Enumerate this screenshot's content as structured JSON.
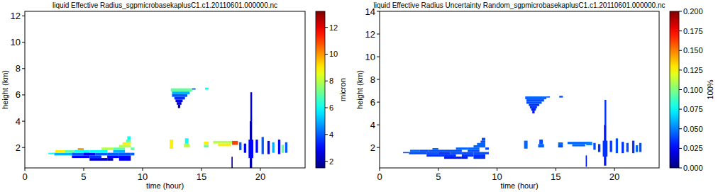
{
  "chart_data": [
    {
      "type": "heatmap",
      "title": "liquid Effective Radius_sgpmicrobasekaplusC1.c1.20110601.000000.nc",
      "x_label": "time (hour)",
      "y_label": "height (km)",
      "xlim": [
        0,
        23.8
      ],
      "xticks": [
        0,
        5,
        10,
        15,
        20
      ],
      "ylim": [
        0.45,
        12.35
      ],
      "yticks": [
        2,
        4,
        6,
        8,
        10,
        12
      ],
      "colorbar_label": "micron",
      "colorbar_range": [
        1.5,
        13.2
      ],
      "colorbar_ticks": [
        2,
        4,
        6,
        8,
        10,
        12
      ],
      "cells": [
        [
          2.0,
          2.5,
          1.5,
          1.6,
          6
        ],
        [
          2.5,
          4,
          1.4,
          1.6,
          5
        ],
        [
          2.6,
          3.4,
          1.6,
          1.8,
          9
        ],
        [
          3.4,
          4.2,
          1.6,
          1.8,
          7
        ],
        [
          4,
          5.5,
          1.2,
          1.4,
          3
        ],
        [
          4,
          5,
          1.4,
          1.6,
          4
        ],
        [
          4.2,
          5.5,
          1.6,
          1.8,
          6
        ],
        [
          4.5,
          5,
          1.8,
          1.95,
          10
        ],
        [
          5,
          6,
          1.4,
          1.6,
          3
        ],
        [
          5.5,
          7,
          1.0,
          1.2,
          2.5
        ],
        [
          5.5,
          6.5,
          1.2,
          1.4,
          3.5
        ],
        [
          6,
          7,
          1.4,
          1.6,
          4
        ],
        [
          5.5,
          7,
          1.6,
          1.8,
          6
        ],
        [
          6.5,
          7.5,
          1.8,
          2.0,
          8
        ],
        [
          7,
          8,
          1.2,
          1.4,
          3
        ],
        [
          7,
          8,
          1.4,
          1.6,
          4
        ],
        [
          7.5,
          8.5,
          1.6,
          1.8,
          5
        ],
        [
          7.5,
          8.5,
          1.8,
          2.0,
          7
        ],
        [
          8,
          9,
          2.0,
          2.2,
          8
        ],
        [
          8.3,
          9,
          2.2,
          2.4,
          9
        ],
        [
          8.6,
          9,
          2.4,
          2.6,
          7
        ],
        [
          8.7,
          9,
          2.6,
          2.85,
          6
        ],
        [
          8,
          9,
          1.0,
          1.4,
          3
        ],
        [
          8,
          9,
          1.4,
          1.6,
          4
        ],
        [
          9,
          9.3,
          1.4,
          1.6,
          4
        ],
        [
          9,
          9.3,
          1.8,
          2.0,
          7
        ],
        [
          7,
          7.5,
          1.0,
          1.2,
          2
        ],
        [
          12.4,
          14.2,
          6.25,
          6.5,
          7
        ],
        [
          12.5,
          14,
          6.05,
          6.25,
          5
        ],
        [
          12.5,
          13.8,
          5.85,
          6.05,
          4
        ],
        [
          12.7,
          13.6,
          5.65,
          5.85,
          3.5
        ],
        [
          12.8,
          13.4,
          5.45,
          5.65,
          3
        ],
        [
          12.9,
          13.3,
          5.25,
          5.45,
          2.5
        ],
        [
          13,
          13.2,
          5.0,
          5.25,
          2
        ],
        [
          15.3,
          15.6,
          6.4,
          6.55,
          6
        ],
        [
          14.2,
          14.5,
          6.4,
          6.5,
          4
        ],
        [
          12.3,
          12.6,
          1.9,
          2.6,
          9
        ],
        [
          13.5,
          14,
          2.0,
          2.3,
          8
        ],
        [
          13.6,
          13.9,
          2.3,
          2.7,
          6
        ],
        [
          15.2,
          15.6,
          2.2,
          2.45,
          9
        ],
        [
          15.2,
          15.6,
          2.0,
          2.2,
          7
        ],
        [
          16,
          17.9,
          2.3,
          2.5,
          8
        ],
        [
          16.4,
          17.5,
          2.1,
          2.3,
          9
        ],
        [
          17.6,
          18.1,
          2.2,
          2.5,
          11
        ],
        [
          18.2,
          18.4,
          1.8,
          2.4,
          4
        ],
        [
          18.6,
          18.8,
          1.6,
          2.3,
          3
        ],
        [
          17.55,
          17.65,
          0.3,
          1.3,
          2
        ],
        [
          19.1,
          19.3,
          0.4,
          4.0,
          2
        ],
        [
          19.15,
          19.3,
          4.0,
          6.2,
          2.5
        ],
        [
          19.0,
          19.4,
          1.2,
          2.6,
          3
        ],
        [
          19.6,
          19.8,
          1.6,
          2.6,
          3
        ],
        [
          20.1,
          20.3,
          1.5,
          2.8,
          4
        ],
        [
          20.6,
          20.8,
          1.5,
          2.5,
          3
        ],
        [
          21.0,
          21.2,
          1.6,
          2.4,
          5
        ],
        [
          21.5,
          21.7,
          1.5,
          2.6,
          3
        ],
        [
          22.1,
          22.3,
          1.6,
          2.4,
          4
        ],
        [
          21.8,
          22.0,
          1.6,
          2.2,
          7
        ]
      ]
    },
    {
      "type": "heatmap",
      "title": "liquid Effective Radius Uncertainty Random_sgpmicrobasekaplusC1.c1.20110601.000000.nc",
      "x_label": "time (hour)",
      "y_label": "height (km)",
      "xlim": [
        0,
        23.8
      ],
      "xticks": [
        0,
        5,
        10,
        15,
        20
      ],
      "ylim": [
        0.2,
        14.0
      ],
      "yticks": [
        2,
        4,
        6,
        8,
        10,
        12,
        14
      ],
      "colorbar_label": "100%",
      "colorbar_range": [
        0,
        0.2
      ],
      "colorbar_ticks": [
        {
          "value": 0,
          "label": "0.000"
        },
        {
          "value": 0.025,
          "label": "0.025"
        },
        {
          "value": 0.05,
          "label": "0.050"
        },
        {
          "value": 0.075,
          "label": "0.075"
        },
        {
          "value": 0.1,
          "label": "0.100"
        },
        {
          "value": 0.125,
          "label": "0.125"
        },
        {
          "value": 0.15,
          "label": "0.150"
        },
        {
          "value": 0.175,
          "label": "0.175"
        },
        {
          "value": 0.2,
          "label": "0.200"
        }
      ],
      "cells": [
        [
          2.0,
          2.5,
          1.5,
          1.6,
          0.04
        ],
        [
          2.5,
          4,
          1.4,
          1.6,
          0.04
        ],
        [
          2.6,
          3.4,
          1.6,
          1.8,
          0.045
        ],
        [
          3.4,
          4.2,
          1.6,
          1.8,
          0.04
        ],
        [
          4,
          5.5,
          1.2,
          1.4,
          0.035
        ],
        [
          4,
          5,
          1.4,
          1.6,
          0.04
        ],
        [
          4.2,
          5.5,
          1.6,
          1.8,
          0.04
        ],
        [
          4.5,
          5,
          1.8,
          1.95,
          0.045
        ],
        [
          5,
          6,
          1.4,
          1.6,
          0.035
        ],
        [
          5.5,
          7,
          1.0,
          1.2,
          0.03
        ],
        [
          5.5,
          6.5,
          1.2,
          1.4,
          0.035
        ],
        [
          6,
          7,
          1.4,
          1.6,
          0.04
        ],
        [
          5.5,
          7,
          1.6,
          1.8,
          0.04
        ],
        [
          6.5,
          7.5,
          1.8,
          2.0,
          0.045
        ],
        [
          7,
          8,
          1.2,
          1.4,
          0.035
        ],
        [
          7,
          8,
          1.4,
          1.6,
          0.04
        ],
        [
          7.5,
          8.5,
          1.6,
          1.8,
          0.04
        ],
        [
          7.5,
          8.5,
          1.8,
          2.0,
          0.045
        ],
        [
          8,
          9,
          2.0,
          2.2,
          0.045
        ],
        [
          8.3,
          9,
          2.2,
          2.4,
          0.045
        ],
        [
          8.6,
          9,
          2.4,
          2.6,
          0.04
        ],
        [
          8.7,
          9,
          2.6,
          2.85,
          0.04
        ],
        [
          8,
          9,
          1.0,
          1.4,
          0.035
        ],
        [
          8,
          9,
          1.4,
          1.6,
          0.04
        ],
        [
          9,
          9.3,
          1.4,
          1.6,
          0.04
        ],
        [
          9,
          9.3,
          1.8,
          2.0,
          0.04
        ],
        [
          7,
          7.5,
          1.0,
          1.2,
          0.03
        ],
        [
          12.4,
          14.2,
          6.25,
          6.5,
          0.045
        ],
        [
          12.5,
          14,
          6.05,
          6.25,
          0.04
        ],
        [
          12.5,
          13.8,
          5.85,
          6.05,
          0.04
        ],
        [
          12.7,
          13.6,
          5.65,
          5.85,
          0.035
        ],
        [
          12.8,
          13.4,
          5.45,
          5.65,
          0.035
        ],
        [
          12.9,
          13.3,
          5.25,
          5.45,
          0.03
        ],
        [
          13,
          13.2,
          5.0,
          5.25,
          0.03
        ],
        [
          15.3,
          15.6,
          6.4,
          6.55,
          0.04
        ],
        [
          14.2,
          14.5,
          6.4,
          6.5,
          0.04
        ],
        [
          12.3,
          12.6,
          1.9,
          2.6,
          0.045
        ],
        [
          13.5,
          14,
          2.0,
          2.3,
          0.045
        ],
        [
          13.6,
          13.9,
          2.3,
          2.7,
          0.04
        ],
        [
          15.2,
          15.6,
          2.2,
          2.45,
          0.045
        ],
        [
          15.2,
          15.6,
          2.0,
          2.2,
          0.04
        ],
        [
          16,
          17.9,
          2.3,
          2.5,
          0.045
        ],
        [
          16.4,
          17.5,
          2.1,
          2.3,
          0.045
        ],
        [
          17.6,
          18.1,
          2.2,
          2.5,
          0.05
        ],
        [
          18.2,
          18.4,
          1.8,
          2.4,
          0.04
        ],
        [
          18.6,
          18.8,
          1.6,
          2.3,
          0.035
        ],
        [
          17.55,
          17.65,
          0.3,
          1.3,
          0.03
        ],
        [
          19.1,
          19.3,
          0.4,
          4.0,
          0.03
        ],
        [
          19.15,
          19.3,
          4.0,
          6.2,
          0.035
        ],
        [
          19.0,
          19.4,
          1.2,
          2.6,
          0.035
        ],
        [
          19.6,
          19.8,
          1.6,
          2.6,
          0.035
        ],
        [
          20.1,
          20.3,
          1.5,
          2.8,
          0.04
        ],
        [
          20.6,
          20.8,
          1.5,
          2.5,
          0.035
        ],
        [
          21.0,
          21.2,
          1.6,
          2.4,
          0.04
        ],
        [
          21.5,
          21.7,
          1.5,
          2.6,
          0.035
        ],
        [
          22.1,
          22.3,
          1.6,
          2.4,
          0.04
        ],
        [
          21.8,
          22.0,
          1.6,
          2.2,
          0.045
        ]
      ]
    }
  ]
}
